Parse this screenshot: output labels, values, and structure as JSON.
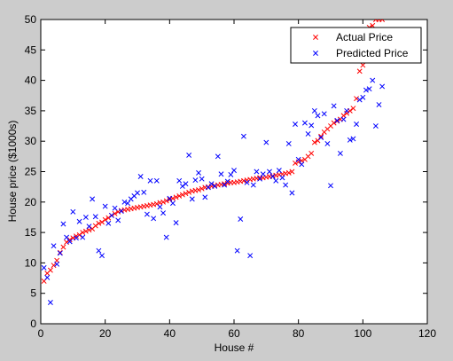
{
  "chart_data": {
    "type": "scatter",
    "xlabel": "House #",
    "ylabel": "House price ($1000s)",
    "xlim": [
      0,
      120
    ],
    "ylim": [
      0,
      50
    ],
    "xticks": [
      0,
      20,
      40,
      60,
      80,
      100,
      120
    ],
    "yticks": [
      0,
      5,
      10,
      15,
      20,
      25,
      30,
      35,
      40,
      45,
      50
    ],
    "grid": false,
    "legend_position": "top-right",
    "series": [
      {
        "name": "Actual Price",
        "color": "#ff0000",
        "marker": "x",
        "x": [
          1,
          2,
          3,
          4,
          5,
          6,
          7,
          8,
          9,
          10,
          11,
          12,
          13,
          14,
          15,
          16,
          17,
          18,
          19,
          20,
          21,
          22,
          23,
          24,
          25,
          26,
          27,
          28,
          29,
          30,
          31,
          32,
          33,
          34,
          35,
          36,
          37,
          38,
          39,
          40,
          41,
          42,
          43,
          44,
          45,
          46,
          47,
          48,
          49,
          50,
          51,
          52,
          53,
          54,
          55,
          56,
          57,
          58,
          59,
          60,
          61,
          62,
          63,
          64,
          65,
          66,
          67,
          68,
          69,
          70,
          71,
          72,
          73,
          74,
          75,
          76,
          77,
          78,
          79,
          80,
          81,
          82,
          83,
          84,
          85,
          86,
          87,
          88,
          89,
          90,
          91,
          92,
          93,
          94,
          95,
          96,
          97,
          98,
          99,
          100,
          101,
          102,
          103,
          104,
          105,
          106
        ],
        "y": [
          7.0,
          8.3,
          8.8,
          9.6,
          10.4,
          11.7,
          12.6,
          13.4,
          13.8,
          14.1,
          14.4,
          14.6,
          15.0,
          15.2,
          15.4,
          15.6,
          16.1,
          16.5,
          16.7,
          17.1,
          17.4,
          17.8,
          18.1,
          18.4,
          18.6,
          18.7,
          18.8,
          18.9,
          19.0,
          19.1,
          19.2,
          19.3,
          19.4,
          19.5,
          19.6,
          19.7,
          19.9,
          20.0,
          20.2,
          20.4,
          20.6,
          20.8,
          21.0,
          21.2,
          21.4,
          21.6,
          21.8,
          21.9,
          22.0,
          22.2,
          22.4,
          22.5,
          22.6,
          22.7,
          22.8,
          22.9,
          23.0,
          23.1,
          23.2,
          23.2,
          23.3,
          23.4,
          23.5,
          23.6,
          23.7,
          23.8,
          23.9,
          24.0,
          24.0,
          24.1,
          24.2,
          24.3,
          24.4,
          24.5,
          24.6,
          24.7,
          24.8,
          25.0,
          26.4,
          26.6,
          26.8,
          27.0,
          27.5,
          28.0,
          29.8,
          30.1,
          30.8,
          31.5,
          32.0,
          32.5,
          33.0,
          33.3,
          33.6,
          34.2,
          34.6,
          35.0,
          35.4,
          37.0,
          41.5,
          42.5,
          48.0,
          48.7,
          49.0,
          50.0,
          50.0,
          50.0
        ]
      },
      {
        "name": "Predicted Price",
        "color": "#0000ff",
        "marker": "x",
        "x": [
          1,
          2,
          3,
          4,
          5,
          6,
          7,
          8,
          9,
          10,
          11,
          12,
          13,
          14,
          15,
          16,
          17,
          18,
          19,
          20,
          21,
          22,
          23,
          24,
          25,
          26,
          27,
          28,
          29,
          30,
          31,
          32,
          33,
          34,
          35,
          36,
          37,
          38,
          39,
          40,
          41,
          42,
          43,
          44,
          45,
          46,
          47,
          48,
          49,
          50,
          51,
          52,
          53,
          54,
          55,
          56,
          57,
          58,
          59,
          60,
          61,
          62,
          63,
          64,
          65,
          66,
          67,
          68,
          69,
          70,
          71,
          72,
          73,
          74,
          75,
          76,
          77,
          78,
          79,
          80,
          81,
          82,
          83,
          84,
          85,
          86,
          87,
          88,
          89,
          90,
          91,
          92,
          93,
          94,
          95,
          96,
          97,
          98,
          99,
          100,
          101,
          102,
          103,
          104,
          105,
          106
        ],
        "y": [
          9.2,
          7.6,
          3.5,
          12.8,
          9.8,
          11.6,
          16.4,
          14.2,
          13.5,
          18.4,
          14.1,
          16.8,
          14.2,
          17.5,
          16.0,
          20.5,
          17.6,
          12.0,
          11.2,
          19.3,
          16.5,
          17.8,
          19.0,
          17.0,
          18.5,
          20.0,
          19.8,
          20.5,
          21.0,
          21.5,
          24.2,
          21.6,
          18.0,
          23.5,
          17.3,
          23.5,
          19.2,
          18.2,
          14.2,
          20.6,
          19.8,
          16.6,
          23.5,
          22.6,
          23.0,
          27.7,
          20.5,
          23.6,
          24.8,
          23.8,
          20.8,
          22.4,
          23.0,
          22.6,
          27.5,
          24.6,
          22.8,
          23.4,
          24.5,
          25.2,
          12.0,
          17.2,
          30.8,
          23.2,
          11.2,
          22.8,
          25.0,
          23.8,
          24.6,
          29.8,
          25.0,
          24.2,
          23.5,
          25.2,
          24.0,
          22.8,
          29.6,
          21.5,
          32.8,
          27.0,
          26.2,
          33.0,
          31.2,
          32.6,
          35.0,
          34.2,
          30.6,
          34.5,
          29.6,
          22.7,
          35.8,
          33.4,
          28.0,
          33.6,
          35.0,
          30.2,
          30.4,
          32.8,
          36.8,
          37.2,
          38.4,
          38.6,
          40.0,
          32.5,
          36.0,
          39.0
        ]
      }
    ]
  }
}
